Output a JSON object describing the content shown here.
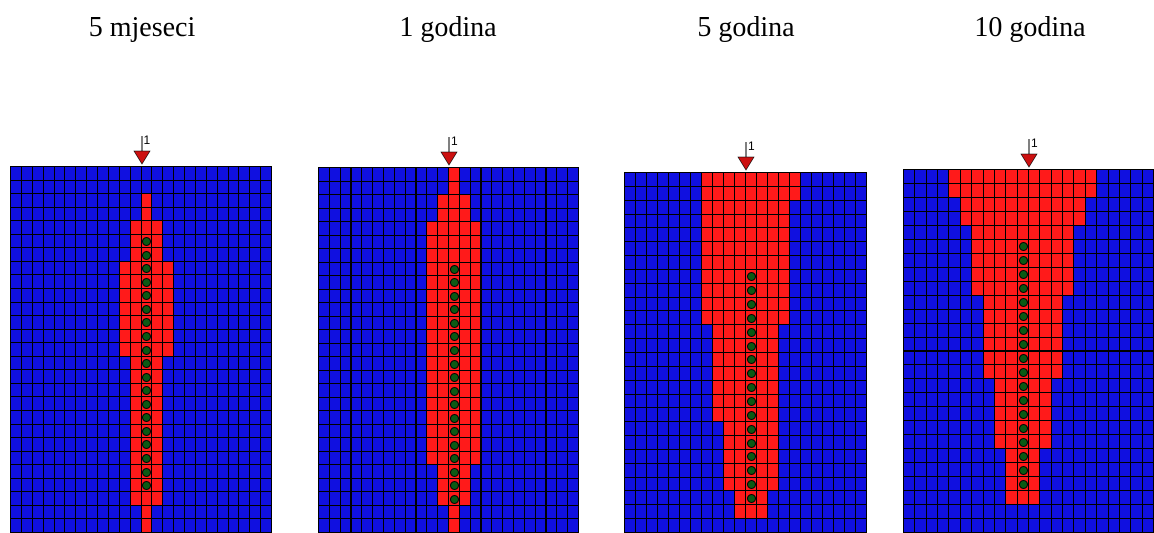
{
  "colors": {
    "aquifer": "#1010e0",
    "contaminated": "#ff1a1a",
    "grid_line": "#000000",
    "well": "#0b5a14",
    "marker": "#cc1111"
  },
  "icon": "inverted-triangle-well-marker",
  "panels": [
    {
      "caption": "5 mjeseci",
      "marker_label": "1",
      "cols": 24,
      "rows": 27,
      "wells": {
        "col": 12,
        "rows": [
          5,
          6,
          7,
          8,
          9,
          10,
          11,
          12,
          13,
          14,
          15,
          16,
          17,
          18,
          19,
          20,
          21,
          22,
          23
        ]
      },
      "plume": [
        [],
        [],
        [
          [
            12,
            12
          ]
        ],
        [
          [
            12,
            12
          ]
        ],
        [
          [
            11,
            13
          ]
        ],
        [
          [
            11,
            13
          ]
        ],
        [
          [
            11,
            13
          ]
        ],
        [
          [
            10,
            14
          ]
        ],
        [
          [
            10,
            14
          ]
        ],
        [
          [
            10,
            14
          ]
        ],
        [
          [
            10,
            14
          ]
        ],
        [
          [
            10,
            14
          ]
        ],
        [
          [
            10,
            14
          ]
        ],
        [
          [
            10,
            14
          ]
        ],
        [
          [
            11,
            13
          ]
        ],
        [
          [
            11,
            13
          ]
        ],
        [
          [
            11,
            13
          ]
        ],
        [
          [
            11,
            13
          ]
        ],
        [
          [
            11,
            13
          ]
        ],
        [
          [
            11,
            13
          ]
        ],
        [
          [
            11,
            13
          ]
        ],
        [
          [
            11,
            13
          ]
        ],
        [
          [
            11,
            13
          ]
        ],
        [
          [
            11,
            13
          ]
        ],
        [
          [
            11,
            13
          ]
        ],
        [
          [
            12,
            12
          ]
        ],
        [
          [
            12,
            12
          ]
        ]
      ]
    },
    {
      "caption": "1 godina",
      "marker_label": "1",
      "cols": 24,
      "rows": 27,
      "wells": {
        "col": 12,
        "rows": [
          7,
          8,
          9,
          10,
          11,
          12,
          13,
          14,
          15,
          16,
          17,
          18,
          19,
          20,
          21,
          22,
          23,
          24
        ]
      },
      "plume": [
        [
          [
            12,
            12
          ]
        ],
        [
          [
            12,
            12
          ]
        ],
        [
          [
            11,
            13
          ]
        ],
        [
          [
            11,
            13
          ]
        ],
        [
          [
            10,
            14
          ]
        ],
        [
          [
            10,
            14
          ]
        ],
        [
          [
            10,
            14
          ]
        ],
        [
          [
            10,
            14
          ]
        ],
        [
          [
            10,
            14
          ]
        ],
        [
          [
            10,
            14
          ]
        ],
        [
          [
            10,
            14
          ]
        ],
        [
          [
            10,
            14
          ]
        ],
        [
          [
            10,
            14
          ]
        ],
        [
          [
            10,
            14
          ]
        ],
        [
          [
            10,
            14
          ]
        ],
        [
          [
            10,
            14
          ]
        ],
        [
          [
            10,
            14
          ]
        ],
        [
          [
            10,
            14
          ]
        ],
        [
          [
            10,
            14
          ]
        ],
        [
          [
            10,
            14
          ]
        ],
        [
          [
            10,
            14
          ]
        ],
        [
          [
            10,
            14
          ]
        ],
        [
          [
            11,
            13
          ]
        ],
        [
          [
            11,
            13
          ]
        ],
        [
          [
            11,
            13
          ]
        ],
        [
          [
            12,
            12
          ]
        ],
        [
          [
            12,
            12
          ]
        ]
      ]
    },
    {
      "caption": "5 godina",
      "marker_label": "1",
      "cols": 22,
      "rows": 26,
      "wells": {
        "col": 11,
        "rows": [
          7,
          8,
          9,
          10,
          11,
          12,
          13,
          14,
          15,
          16,
          17,
          18,
          19,
          20,
          21,
          22,
          23
        ]
      },
      "plume": [
        [
          [
            7,
            15
          ]
        ],
        [
          [
            7,
            15
          ]
        ],
        [
          [
            7,
            14
          ]
        ],
        [
          [
            7,
            14
          ]
        ],
        [
          [
            7,
            14
          ]
        ],
        [
          [
            7,
            14
          ]
        ],
        [
          [
            7,
            14
          ]
        ],
        [
          [
            7,
            14
          ]
        ],
        [
          [
            7,
            14
          ]
        ],
        [
          [
            7,
            14
          ]
        ],
        [
          [
            7,
            14
          ]
        ],
        [
          [
            8,
            13
          ]
        ],
        [
          [
            8,
            13
          ]
        ],
        [
          [
            8,
            13
          ]
        ],
        [
          [
            8,
            13
          ]
        ],
        [
          [
            8,
            13
          ]
        ],
        [
          [
            8,
            13
          ]
        ],
        [
          [
            8,
            13
          ]
        ],
        [
          [
            9,
            13
          ]
        ],
        [
          [
            9,
            13
          ]
        ],
        [
          [
            9,
            13
          ]
        ],
        [
          [
            9,
            13
          ]
        ],
        [
          [
            9,
            13
          ]
        ],
        [
          [
            10,
            12
          ]
        ],
        [
          [
            10,
            12
          ]
        ],
        []
      ]
    },
    {
      "caption": "10 godina",
      "marker_label": "1",
      "cols": 22,
      "rows": 26,
      "wells": {
        "col": 10,
        "rows": [
          5,
          6,
          7,
          8,
          9,
          10,
          11,
          12,
          13,
          14,
          15,
          16,
          17,
          18,
          19,
          20,
          21,
          22
        ]
      },
      "plume": [
        [
          [
            4,
            16
          ]
        ],
        [
          [
            4,
            16
          ]
        ],
        [
          [
            5,
            15
          ]
        ],
        [
          [
            5,
            15
          ]
        ],
        [
          [
            6,
            14
          ]
        ],
        [
          [
            6,
            14
          ]
        ],
        [
          [
            6,
            14
          ]
        ],
        [
          [
            6,
            14
          ]
        ],
        [
          [
            6,
            14
          ]
        ],
        [
          [
            7,
            13
          ]
        ],
        [
          [
            7,
            13
          ]
        ],
        [
          [
            7,
            13
          ]
        ],
        [
          [
            7,
            13
          ]
        ],
        [
          [
            7,
            13
          ]
        ],
        [
          [
            7,
            13
          ]
        ],
        [
          [
            8,
            12
          ]
        ],
        [
          [
            8,
            12
          ]
        ],
        [
          [
            8,
            12
          ]
        ],
        [
          [
            8,
            12
          ]
        ],
        [
          [
            8,
            12
          ]
        ],
        [
          [
            9,
            11
          ]
        ],
        [
          [
            9,
            11
          ]
        ],
        [
          [
            9,
            11
          ]
        ],
        [
          [
            9,
            11
          ]
        ],
        [],
        []
      ]
    }
  ]
}
